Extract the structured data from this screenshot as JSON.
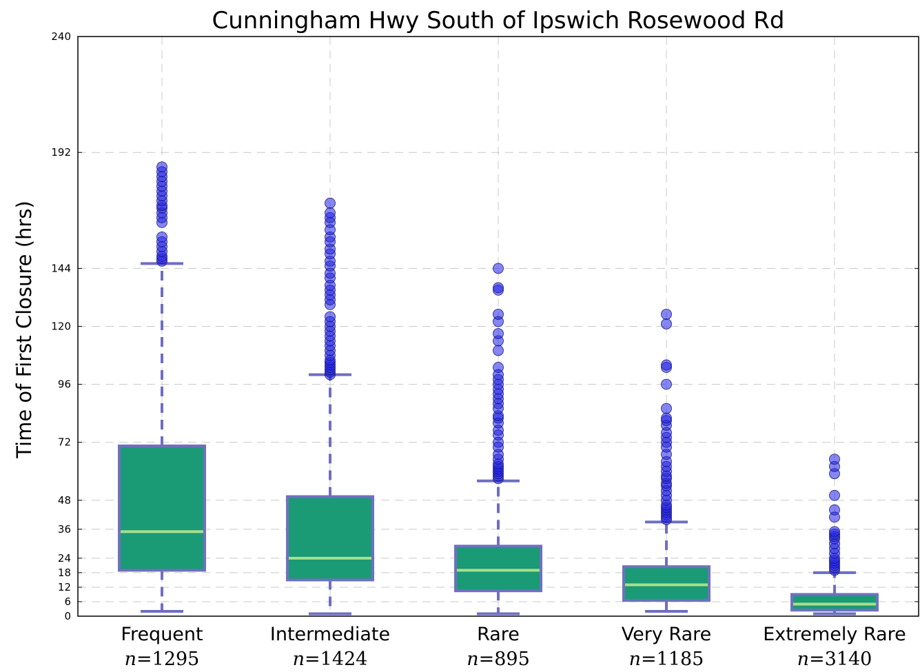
{
  "chart_data": {
    "type": "box",
    "title": "Cunningham Hwy  South of Ipswich Rosewood Rd",
    "xlabel": "",
    "ylabel": "Time of First Closure (hrs)",
    "ylim": [
      0,
      240
    ],
    "yticks": [
      0,
      6,
      12,
      18,
      24,
      36,
      48,
      72,
      96,
      120,
      144,
      192,
      240
    ],
    "grid": true,
    "colors": {
      "box_fill": "#1b9a76",
      "box_edge": "#7070c0",
      "median": "#a8e08a",
      "whisker": "#6e6ec2",
      "flier": "#2323e8"
    },
    "categories": [
      {
        "name": "Frequent",
        "n_label": "n",
        "n_value": "=1295",
        "whisker_low": 2,
        "q1": 19,
        "median": 35,
        "q3": 70.5,
        "whisker_high": 146,
        "fliers": [
          147,
          148,
          149,
          151,
          153,
          155,
          157,
          163,
          165,
          167,
          169,
          170,
          172,
          174,
          176,
          178,
          180,
          182,
          184,
          186
        ]
      },
      {
        "name": "Intermediate",
        "n_label": "n",
        "n_value": "=1424",
        "whisker_low": 1,
        "q1": 15,
        "median": 24,
        "q3": 49.5,
        "whisker_high": 100,
        "fliers": [
          100,
          101,
          102,
          103,
          104,
          105,
          106,
          108,
          110,
          112,
          114,
          116,
          118,
          120,
          122,
          124,
          129,
          131,
          133,
          135,
          137,
          140,
          142,
          145,
          147,
          150,
          152,
          155,
          157,
          160,
          163,
          165,
          167,
          171
        ]
      },
      {
        "name": "Rare",
        "n_label": "n",
        "n_value": "=895",
        "whisker_low": 1,
        "q1": 10.5,
        "median": 19,
        "q3": 29,
        "whisker_high": 56,
        "fliers": [
          57,
          58,
          59,
          60,
          61,
          62,
          63,
          65,
          67,
          70,
          72,
          75,
          77,
          80,
          82,
          83,
          86,
          88,
          90,
          92,
          94,
          96,
          98,
          100,
          103,
          110,
          114,
          117,
          122,
          125,
          135,
          136,
          144
        ]
      },
      {
        "name": "Very Rare",
        "n_label": "n",
        "n_value": "=1185",
        "whisker_low": 2,
        "q1": 6.5,
        "median": 13,
        "q3": 20.5,
        "whisker_high": 39,
        "fliers": [
          40,
          41,
          42,
          43,
          44,
          45,
          46,
          48,
          50,
          52,
          54,
          55,
          57,
          58,
          60,
          62,
          64,
          67,
          70,
          72,
          74,
          76,
          79,
          81,
          82,
          86,
          96,
          103,
          104,
          121,
          125
        ]
      },
      {
        "name": "Extremely Rare",
        "n_label": "n",
        "n_value": "=3140",
        "whisker_low": 1,
        "q1": 2.5,
        "median": 5,
        "q3": 9,
        "whisker_high": 18,
        "fliers": [
          19,
          20,
          21,
          22,
          23,
          24,
          26,
          28,
          30,
          32,
          33,
          34,
          35,
          41,
          44,
          50,
          59,
          62,
          65
        ]
      }
    ]
  }
}
